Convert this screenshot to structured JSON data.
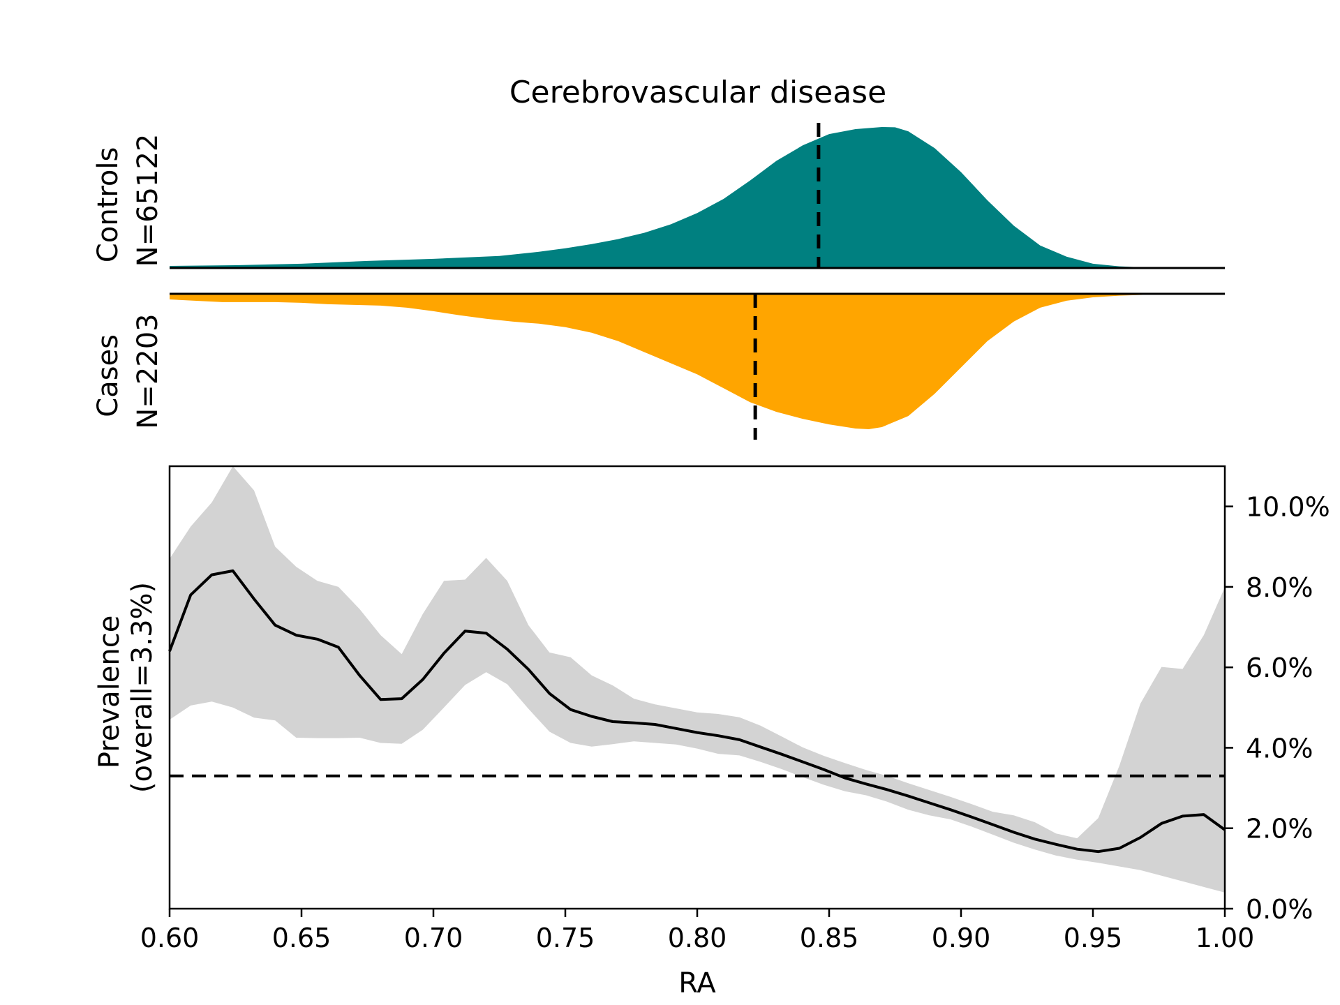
{
  "chart_data": [
    {
      "panel": "top",
      "type": "area",
      "title": "Cerebrovascular disease",
      "xlim": [
        0.6,
        1.0
      ],
      "series": [
        {
          "name": "Controls",
          "label_line1": "Controls",
          "label_line2": "N=65122",
          "color": "#008080",
          "mean": 0.846,
          "x": [
            0.6,
            0.625,
            0.65,
            0.675,
            0.7,
            0.725,
            0.74,
            0.75,
            0.76,
            0.77,
            0.78,
            0.79,
            0.8,
            0.81,
            0.82,
            0.83,
            0.84,
            0.85,
            0.86,
            0.87,
            0.875,
            0.88,
            0.89,
            0.9,
            0.91,
            0.92,
            0.93,
            0.94,
            0.95,
            0.96,
            0.97,
            0.98,
            1.0
          ],
          "density": [
            0.015,
            0.02,
            0.03,
            0.05,
            0.065,
            0.085,
            0.115,
            0.14,
            0.17,
            0.205,
            0.25,
            0.31,
            0.39,
            0.49,
            0.62,
            0.76,
            0.87,
            0.95,
            0.985,
            1.0,
            0.998,
            0.97,
            0.85,
            0.68,
            0.48,
            0.3,
            0.16,
            0.08,
            0.03,
            0.012,
            0.004,
            0.001,
            0.0
          ]
        },
        {
          "name": "Cases",
          "label_line1": "Cases",
          "label_line2": "N=2203",
          "color": "#FFA500",
          "mean": 0.822,
          "x": [
            0.6,
            0.62,
            0.64,
            0.65,
            0.66,
            0.67,
            0.68,
            0.69,
            0.7,
            0.71,
            0.72,
            0.73,
            0.74,
            0.75,
            0.76,
            0.77,
            0.78,
            0.79,
            0.8,
            0.81,
            0.82,
            0.83,
            0.84,
            0.85,
            0.86,
            0.865,
            0.87,
            0.88,
            0.89,
            0.9,
            0.91,
            0.92,
            0.93,
            0.94,
            0.95,
            0.96,
            0.97,
            0.98,
            1.0
          ],
          "density": [
            0.04,
            0.06,
            0.06,
            0.065,
            0.075,
            0.08,
            0.085,
            0.1,
            0.125,
            0.155,
            0.18,
            0.2,
            0.215,
            0.24,
            0.28,
            0.34,
            0.42,
            0.5,
            0.58,
            0.68,
            0.78,
            0.85,
            0.9,
            0.94,
            0.97,
            0.975,
            0.96,
            0.88,
            0.72,
            0.53,
            0.34,
            0.2,
            0.1,
            0.05,
            0.025,
            0.013,
            0.007,
            0.003,
            0.0
          ]
        }
      ]
    },
    {
      "panel": "bottom",
      "type": "line",
      "xlabel": "RA",
      "ylabel_line1": "Prevalence",
      "ylabel_line2": "(overall=3.3%)",
      "xlim": [
        0.6,
        1.0
      ],
      "ylim": [
        0.0,
        0.11
      ],
      "overall": 0.033,
      "xticks": [
        0.6,
        0.65,
        0.7,
        0.75,
        0.8,
        0.85,
        0.9,
        0.95,
        1.0
      ],
      "xtick_labels": [
        "0.60",
        "0.65",
        "0.70",
        "0.75",
        "0.80",
        "0.85",
        "0.90",
        "0.95",
        "1.00"
      ],
      "yticks": [
        0.0,
        0.02,
        0.04,
        0.06,
        0.08,
        0.1
      ],
      "ytick_labels": [
        "0.0%",
        "2.0%",
        "4.0%",
        "6.0%",
        "8.0%",
        "10.0%"
      ],
      "x": [
        0.6,
        0.608,
        0.616,
        0.624,
        0.632,
        0.64,
        0.648,
        0.656,
        0.664,
        0.672,
        0.68,
        0.688,
        0.696,
        0.704,
        0.712,
        0.72,
        0.728,
        0.736,
        0.744,
        0.752,
        0.76,
        0.768,
        0.776,
        0.784,
        0.792,
        0.8,
        0.808,
        0.816,
        0.824,
        0.832,
        0.84,
        0.848,
        0.856,
        0.864,
        0.872,
        0.88,
        0.888,
        0.896,
        0.904,
        0.912,
        0.92,
        0.928,
        0.936,
        0.944,
        0.952,
        0.96,
        0.968,
        0.976,
        0.984,
        0.992,
        1.0
      ],
      "y": [
        0.064,
        0.078,
        0.083,
        0.084,
        0.077,
        0.0705,
        0.068,
        0.067,
        0.065,
        0.058,
        0.052,
        0.0522,
        0.057,
        0.0635,
        0.069,
        0.0685,
        0.0645,
        0.0595,
        0.0535,
        0.0495,
        0.0478,
        0.0465,
        0.0462,
        0.0458,
        0.0448,
        0.0438,
        0.043,
        0.042,
        0.0402,
        0.0384,
        0.0365,
        0.0346,
        0.0325,
        0.031,
        0.0296,
        0.028,
        0.0263,
        0.0246,
        0.0228,
        0.0209,
        0.019,
        0.0173,
        0.016,
        0.0148,
        0.0142,
        0.015,
        0.0177,
        0.0212,
        0.023,
        0.0234,
        0.0196
      ],
      "ci_lower": [
        0.047,
        0.0505,
        0.0515,
        0.05,
        0.0475,
        0.0468,
        0.0425,
        0.0424,
        0.0424,
        0.0425,
        0.0412,
        0.041,
        0.0445,
        0.05,
        0.0556,
        0.0588,
        0.0558,
        0.0497,
        0.044,
        0.0412,
        0.0403,
        0.0409,
        0.0416,
        0.0412,
        0.0408,
        0.0398,
        0.0385,
        0.0381,
        0.0365,
        0.0347,
        0.0327,
        0.0308,
        0.0292,
        0.0282,
        0.0266,
        0.0246,
        0.0232,
        0.0222,
        0.0204,
        0.0184,
        0.0164,
        0.0147,
        0.0132,
        0.0122,
        0.0114,
        0.0105,
        0.0096,
        0.0082,
        0.0068,
        0.0054,
        0.004
      ],
      "ci_upper": [
        0.087,
        0.095,
        0.101,
        0.11,
        0.104,
        0.09,
        0.085,
        0.0815,
        0.08,
        0.0745,
        0.068,
        0.0633,
        0.0733,
        0.0815,
        0.0818,
        0.0872,
        0.0815,
        0.0705,
        0.0637,
        0.0625,
        0.058,
        0.0555,
        0.0522,
        0.0508,
        0.0498,
        0.0488,
        0.0484,
        0.0476,
        0.0455,
        0.0428,
        0.0401,
        0.038,
        0.0362,
        0.0345,
        0.033,
        0.0312,
        0.0295,
        0.0278,
        0.026,
        0.0241,
        0.0232,
        0.0215,
        0.0187,
        0.0175,
        0.0225,
        0.0355,
        0.051,
        0.0601,
        0.0596,
        0.068,
        0.0799
      ],
      "line_color": "#000000",
      "band_color": "#D3D3D3"
    }
  ]
}
